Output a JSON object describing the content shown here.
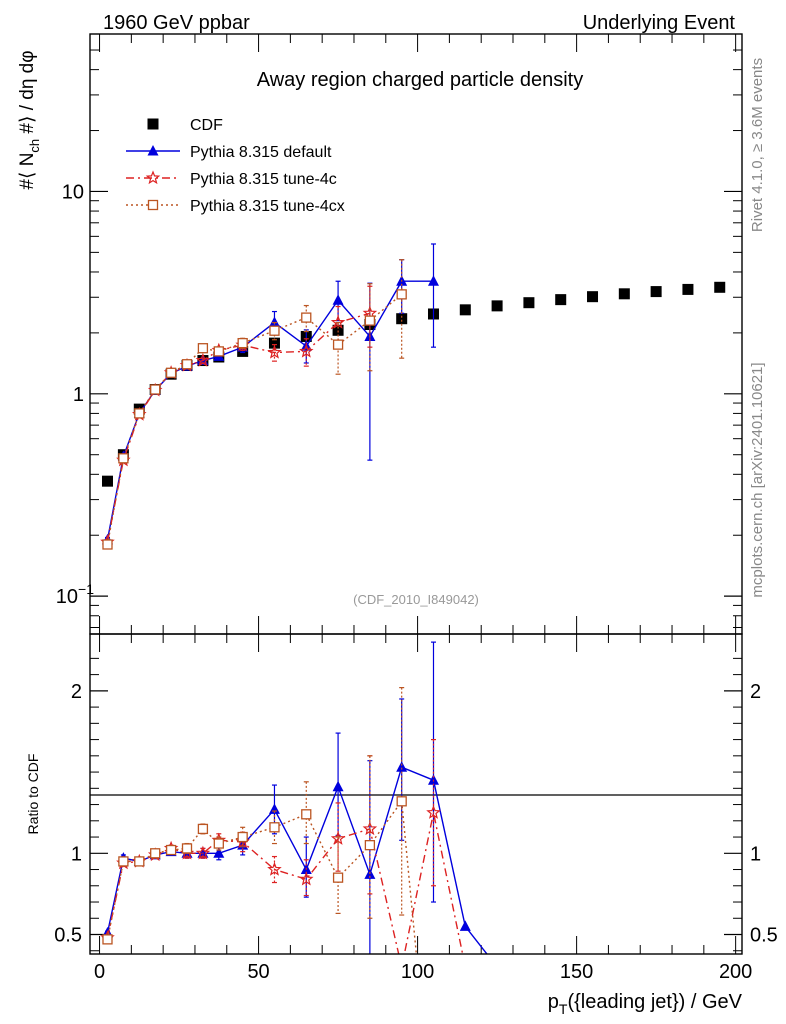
{
  "header": {
    "left": "1960 GeV ppbar",
    "right": "Underlying Event"
  },
  "side_labels": {
    "rivet": "Rivet 4.1.0, ≥ 3.6M events",
    "mcplots": "mcplots.cern.ch [arXiv:2401.10621]"
  },
  "chart_data": [
    {
      "type": "scatter",
      "panel": "main",
      "title": "Away region charged particle density",
      "watermark": "(CDF_2010_I849042)",
      "ylabel": "#⟨ N_ch #⟩ / dη dφ",
      "yscale": "log",
      "xlim": [
        -3,
        202
      ],
      "ylim": [
        0.065,
        60
      ],
      "yticks": [
        {
          "value": 0.1,
          "label": "10",
          "sup": "−1"
        },
        {
          "value": 1,
          "label": "1",
          "sup": ""
        },
        {
          "value": 10,
          "label": "10",
          "sup": ""
        }
      ],
      "legend_position": "top-left",
      "series": [
        {
          "name": "CDF",
          "color": "#000000",
          "marker": "square",
          "line": "none",
          "x": [
            2.5,
            7.5,
            12.5,
            17.5,
            22.5,
            27.5,
            32.5,
            37.5,
            45,
            55,
            65,
            75,
            85,
            95,
            105,
            115,
            125,
            135,
            145,
            155,
            165,
            175,
            185,
            195
          ],
          "y": [
            0.37,
            0.5,
            0.84,
            1.05,
            1.25,
            1.38,
            1.46,
            1.52,
            1.62,
            1.78,
            1.92,
            2.06,
            2.2,
            2.35,
            2.48,
            2.6,
            2.72,
            2.82,
            2.92,
            3.02,
            3.12,
            3.2,
            3.28,
            3.36
          ]
        },
        {
          "name": "Pythia 8.315 default",
          "color": "#0000dd",
          "marker": "triangle",
          "line": "solid",
          "x": [
            2.5,
            7.5,
            12.5,
            17.5,
            22.5,
            27.5,
            32.5,
            37.5,
            45,
            55,
            65,
            75,
            85,
            95,
            105
          ],
          "y": [
            0.19,
            0.49,
            0.8,
            1.04,
            1.26,
            1.37,
            1.46,
            1.53,
            1.7,
            2.25,
            1.72,
            2.9,
            1.92,
            3.6,
            3.6
          ],
          "err_lo": [
            0.005,
            0.01,
            0.01,
            0.015,
            0.02,
            0.03,
            0.04,
            0.06,
            0.1,
            0.25,
            0.3,
            0.6,
            1.45,
            1.1,
            1.9
          ],
          "err_hi": [
            0.005,
            0.01,
            0.01,
            0.015,
            0.02,
            0.03,
            0.04,
            0.06,
            0.1,
            0.3,
            0.35,
            0.7,
            1.6,
            1.0,
            1.9
          ]
        },
        {
          "name": "Pythia 8.315 tune-4c",
          "color": "#dd2222",
          "marker": "star",
          "line": "dashdot",
          "x": [
            2.5,
            7.5,
            12.5,
            17.5,
            22.5,
            27.5,
            32.5,
            37.5,
            45,
            55,
            65,
            75,
            85
          ],
          "y": [
            0.185,
            0.47,
            0.79,
            1.04,
            1.27,
            1.38,
            1.46,
            1.64,
            1.74,
            1.6,
            1.62,
            2.25,
            2.5
          ],
          "err_lo": [
            0.005,
            0.01,
            0.01,
            0.015,
            0.02,
            0.03,
            0.04,
            0.06,
            0.1,
            0.15,
            0.25,
            0.45,
            0.8
          ],
          "err_hi": [
            0.005,
            0.01,
            0.01,
            0.015,
            0.02,
            0.03,
            0.04,
            0.06,
            0.1,
            0.15,
            0.25,
            0.45,
            0.9
          ]
        },
        {
          "name": "Pythia 8.315 tune-4cx",
          "color": "#bb5522",
          "marker": "open-square",
          "line": "dotted",
          "x": [
            2.5,
            7.5,
            12.5,
            17.5,
            22.5,
            27.5,
            32.5,
            37.5,
            45,
            55,
            65,
            75,
            85,
            95
          ],
          "y": [
            0.18,
            0.48,
            0.8,
            1.05,
            1.27,
            1.4,
            1.68,
            1.62,
            1.78,
            2.05,
            2.38,
            1.75,
            2.3,
            3.1
          ],
          "err_lo": [
            0.005,
            0.01,
            0.01,
            0.015,
            0.02,
            0.03,
            0.04,
            0.06,
            0.1,
            0.2,
            0.35,
            0.5,
            1.0,
            1.6
          ],
          "err_hi": [
            0.005,
            0.01,
            0.01,
            0.015,
            0.02,
            0.03,
            0.04,
            0.06,
            0.1,
            0.2,
            0.35,
            0.5,
            1.2,
            1.5
          ]
        }
      ]
    },
    {
      "type": "line",
      "panel": "ratio",
      "ylabel": "Ratio to CDF",
      "xlabel": "p_T({leading jet}) / GeV",
      "xlim": [
        -3,
        202
      ],
      "ylim": [
        0.38,
        2.35
      ],
      "xticks": [
        0,
        50,
        100,
        150,
        200
      ],
      "yticks": [
        0.5,
        1,
        2
      ],
      "reference_line": 1,
      "series": [
        {
          "name": "Pythia 8.315 default",
          "color": "#0000dd",
          "marker": "triangle",
          "line": "solid",
          "x": [
            2.5,
            7.5,
            12.5,
            17.5,
            22.5,
            27.5,
            32.5,
            37.5,
            45,
            55,
            65,
            75,
            85,
            95,
            105,
            115,
            125
          ],
          "y": [
            0.51,
            0.97,
            0.95,
            0.99,
            1.01,
            1.0,
            1.0,
            1.0,
            1.05,
            1.27,
            0.9,
            1.41,
            0.87,
            1.53,
            1.45,
            0.55,
            0.3
          ],
          "err_lo": [
            0.01,
            0.02,
            0.02,
            0.02,
            0.02,
            0.03,
            0.03,
            0.04,
            0.06,
            0.15,
            0.17,
            0.3,
            0.6,
            0.45,
            0.75,
            0,
            0
          ],
          "err_hi": [
            0.01,
            0.02,
            0.02,
            0.02,
            0.02,
            0.03,
            0.03,
            0.04,
            0.06,
            0.15,
            0.2,
            0.33,
            0.7,
            0.42,
            0.85,
            0,
            0
          ]
        },
        {
          "name": "Pythia 8.315 tune-4c",
          "color": "#dd2222",
          "marker": "star",
          "line": "dashdot",
          "x": [
            2.5,
            7.5,
            12.5,
            17.5,
            22.5,
            27.5,
            32.5,
            37.5,
            45,
            55,
            65,
            75,
            85,
            95,
            105,
            115
          ],
          "y": [
            0.48,
            0.94,
            0.95,
            0.99,
            1.03,
            1.0,
            1.0,
            1.08,
            1.07,
            0.9,
            0.84,
            1.09,
            1.15,
            0.3,
            1.25,
            0.3
          ],
          "err_lo": [
            0.01,
            0.02,
            0.02,
            0.02,
            0.02,
            0.03,
            0.03,
            0.04,
            0.06,
            0.08,
            0.1,
            0.2,
            0.4,
            0,
            0.45,
            0
          ],
          "err_hi": [
            0.01,
            0.02,
            0.02,
            0.02,
            0.02,
            0.03,
            0.03,
            0.04,
            0.06,
            0.08,
            0.12,
            0.22,
            0.45,
            0,
            0.45,
            0
          ]
        },
        {
          "name": "Pythia 8.315 tune-4cx",
          "color": "#bb5522",
          "marker": "open-square",
          "line": "dotted",
          "x": [
            2.5,
            7.5,
            12.5,
            17.5,
            22.5,
            27.5,
            32.5,
            37.5,
            45,
            55,
            65,
            75,
            85,
            95,
            100
          ],
          "y": [
            0.47,
            0.95,
            0.95,
            1.0,
            1.02,
            1.03,
            1.15,
            1.06,
            1.1,
            1.16,
            1.24,
            0.85,
            1.05,
            1.32,
            0.3
          ],
          "err_lo": [
            0.01,
            0.02,
            0.02,
            0.02,
            0.02,
            0.03,
            0.03,
            0.04,
            0.06,
            0.1,
            0.18,
            0.22,
            0.45,
            0.7,
            0
          ],
          "err_hi": [
            0.01,
            0.02,
            0.02,
            0.02,
            0.02,
            0.03,
            0.03,
            0.04,
            0.06,
            0.1,
            0.2,
            0.25,
            0.55,
            0.7,
            0
          ]
        }
      ]
    }
  ]
}
